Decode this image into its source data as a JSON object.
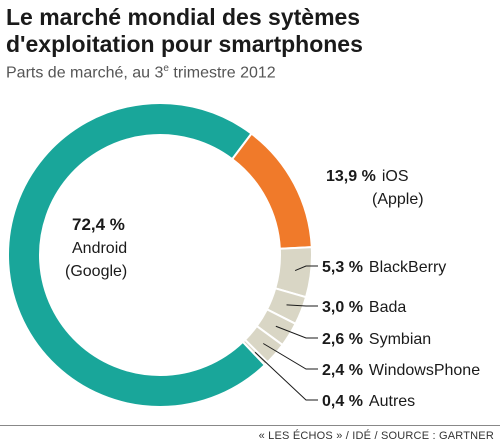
{
  "title": "Le marché mondial des sytèmes d'exploitation pour smartphones",
  "subtitle": {
    "text_before": "Parts de marché, au 3",
    "superscript": "e",
    "text_after": " trimestre 2012"
  },
  "source": "« LES ÉCHOS » / IDÉ / SOURCE : GARTNER",
  "colors": {
    "android": "#19a69a",
    "ios": "#f07a2a",
    "others": "#d9d6c5",
    "separator": "#ffffff",
    "leader_line": "#1a1a1a"
  },
  "chart_data": {
    "type": "pie",
    "donut": true,
    "slices": [
      {
        "name": "Android",
        "sub": "(Google)",
        "value": 72.4,
        "label": "72,4 %",
        "color": "#19a69a"
      },
      {
        "name": "iOS",
        "sub": "(Apple)",
        "value": 13.9,
        "label": "13,9 %",
        "color": "#f07a2a"
      },
      {
        "name": "BlackBerry",
        "value": 5.3,
        "label": "5,3 %",
        "color": "#d9d6c5"
      },
      {
        "name": "Bada",
        "value": 3.0,
        "label": "3,0 %",
        "color": "#d9d6c5"
      },
      {
        "name": "Symbian",
        "value": 2.6,
        "label": "2,6 %",
        "color": "#d9d6c5"
      },
      {
        "name": "WindowsPhone",
        "value": 2.4,
        "label": "2,4 %",
        "color": "#d9d6c5"
      },
      {
        "name": "Autres",
        "value": 0.4,
        "label": "0,4 %",
        "color": "#d9d6c5"
      }
    ]
  }
}
